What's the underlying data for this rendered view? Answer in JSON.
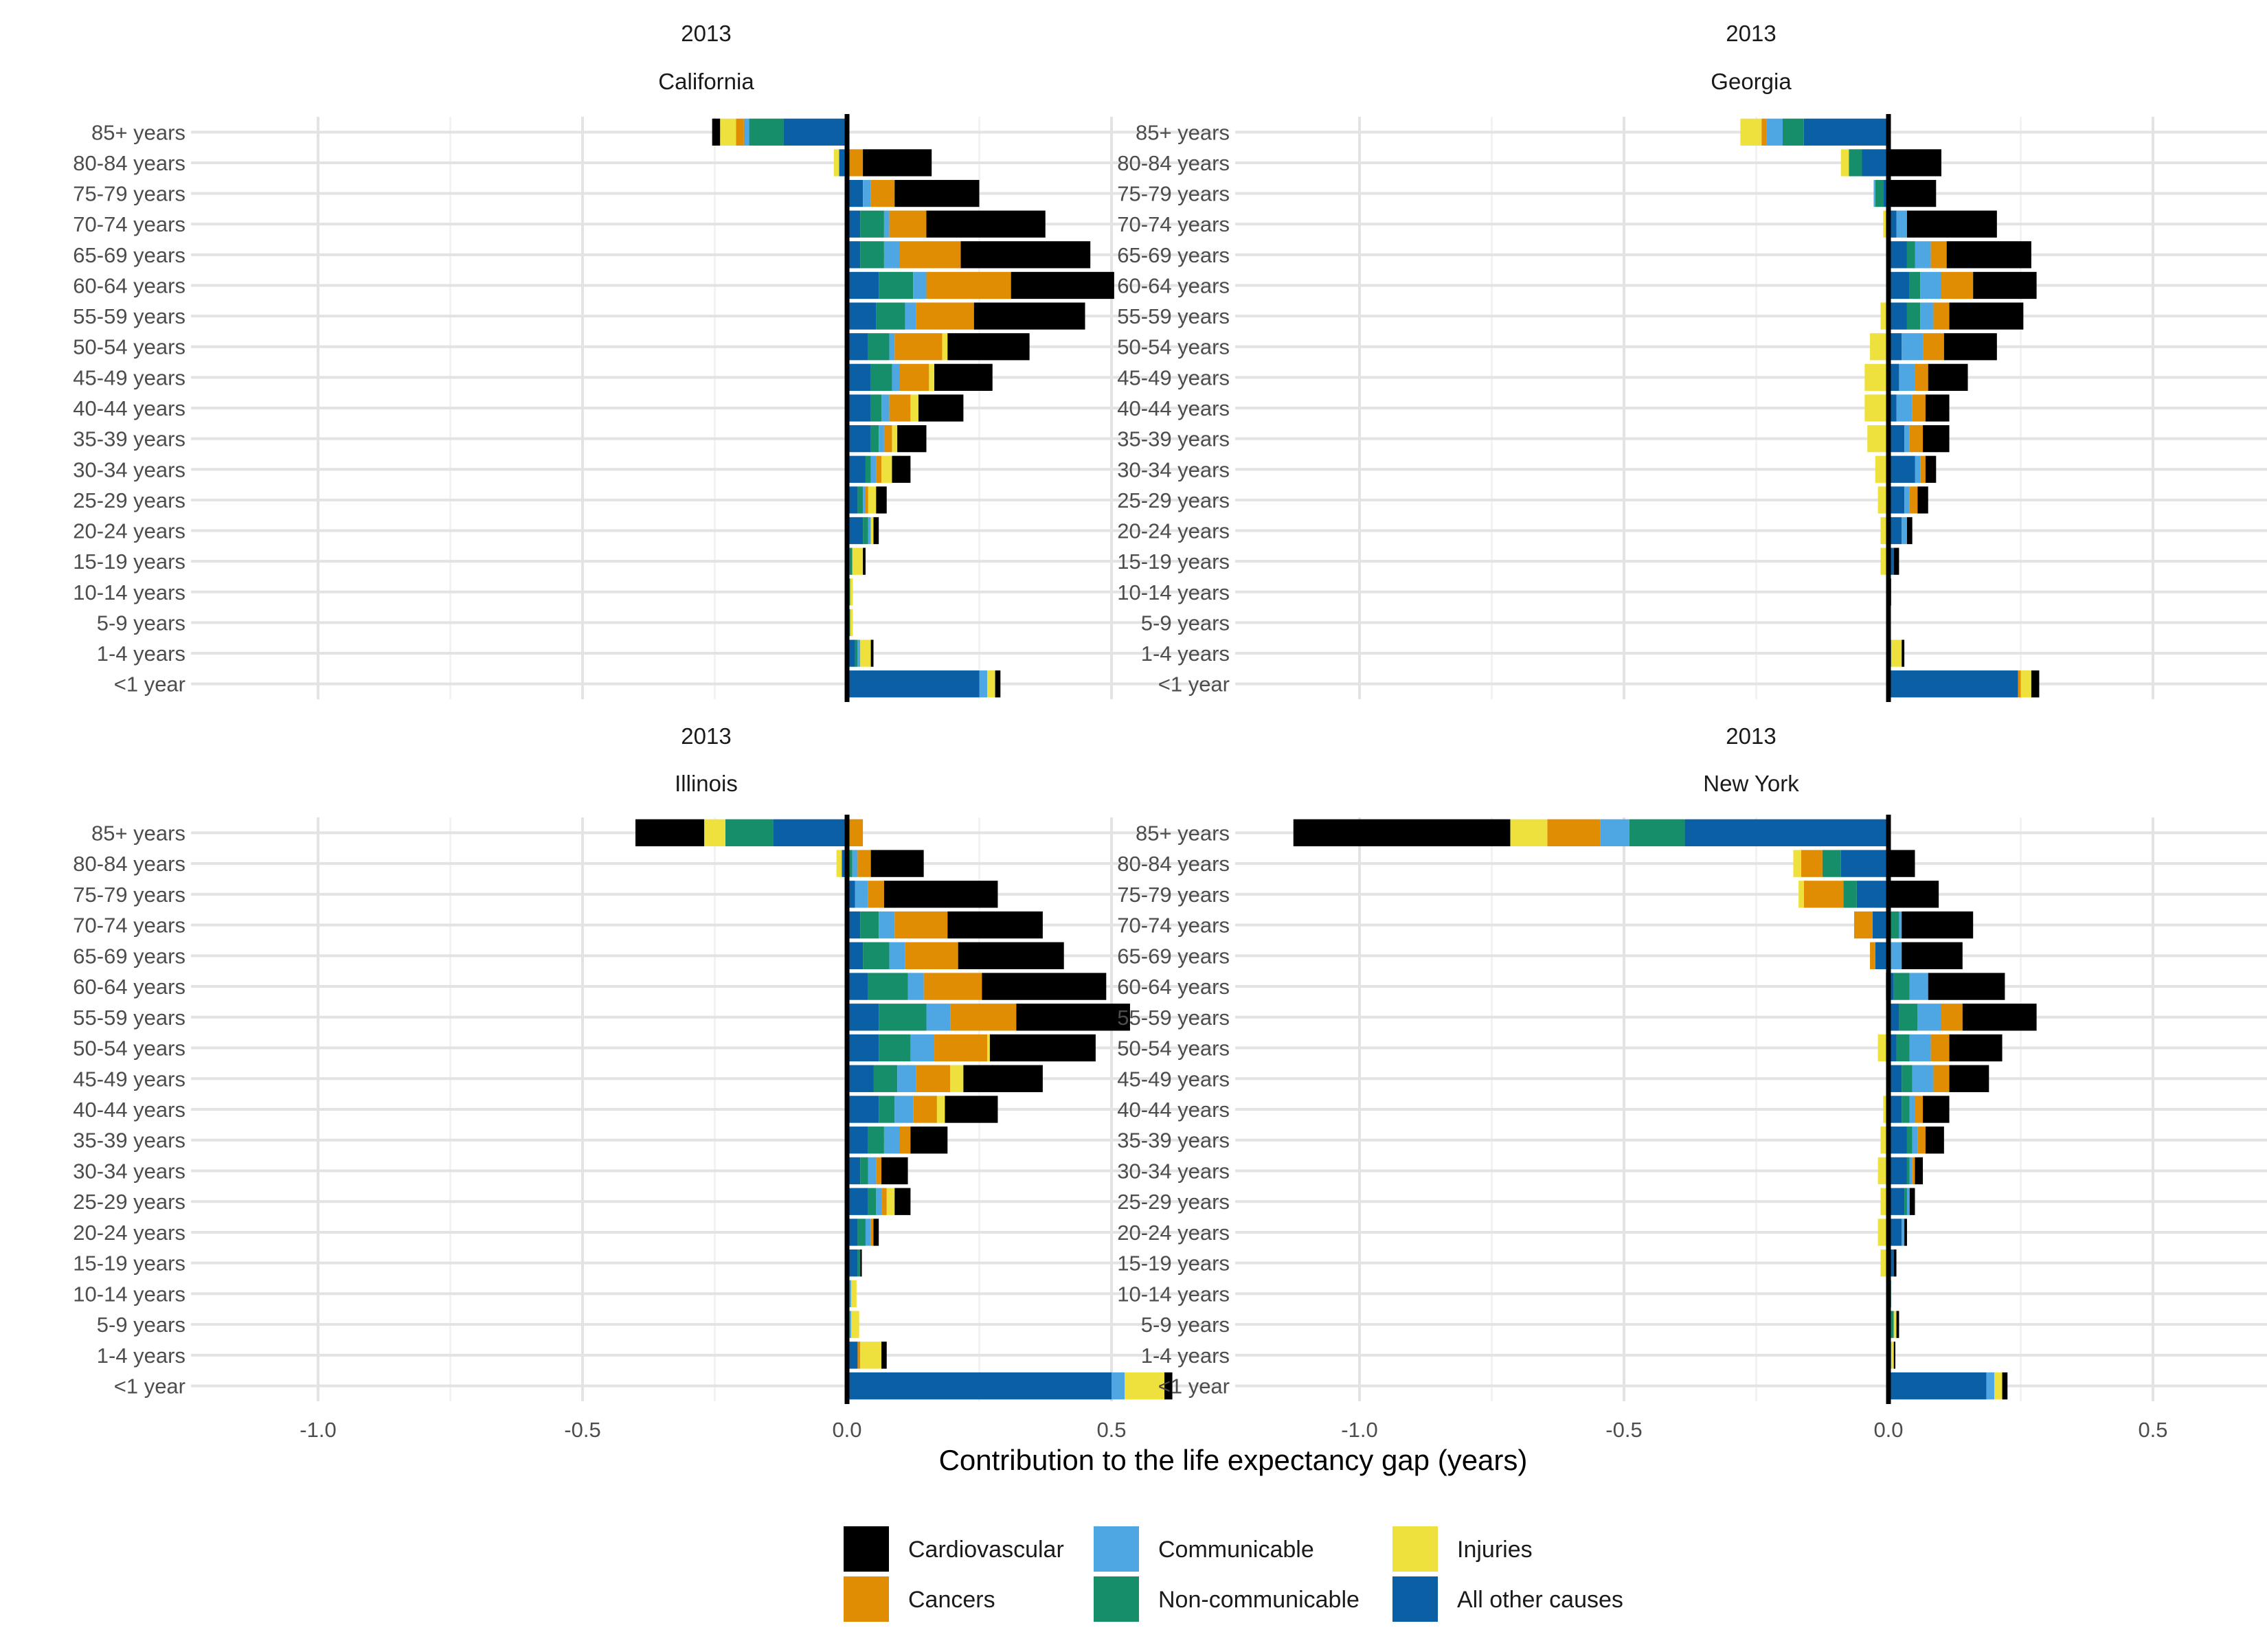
{
  "chart_data": {
    "type": "bar",
    "orientation": "horizontal",
    "stacked": true,
    "xlabel": "Contribution to the life expectancy gap (years)",
    "ylabel": "",
    "xlim": [
      -1.2,
      0.7
    ],
    "x_ticks": [
      -1.0,
      -0.5,
      0.0,
      0.5
    ],
    "x_tick_labels": [
      "-1.0",
      "-0.5",
      "0.0",
      "0.5"
    ],
    "grid": true,
    "legend_position": "bottom",
    "age_groups": [
      "85+ years",
      "80-84 years",
      "75-79 years",
      "70-74 years",
      "65-69 years",
      "60-64 years",
      "55-59 years",
      "50-54 years",
      "45-49 years",
      "40-44 years",
      "35-39 years",
      "30-34 years",
      "25-29 years",
      "20-24 years",
      "15-19 years",
      "10-14 years",
      "5-9 years",
      "1-4 years",
      "<1 year"
    ],
    "causes": [
      {
        "key": "all_other",
        "name": "All other causes",
        "color": "#0B5FA5"
      },
      {
        "key": "noncomm",
        "name": "Non-communicable",
        "color": "#168E69"
      },
      {
        "key": "comm",
        "name": "Communicable",
        "color": "#4EA7E2"
      },
      {
        "key": "cancers",
        "name": "Cancers",
        "color": "#E08D04"
      },
      {
        "key": "injuries",
        "name": "Injuries",
        "color": "#EEE13E"
      },
      {
        "key": "cardio",
        "name": "Cardiovascular",
        "color": "#000000"
      }
    ],
    "legend_order": [
      "cardio",
      "cancers",
      "comm",
      "noncomm",
      "injuries",
      "all_other"
    ],
    "panels": [
      {
        "year": "2013",
        "state": "California",
        "rows": [
          {
            "all_other": -0.12,
            "injuries": -0.03,
            "noncomm": -0.065,
            "comm": -0.01,
            "cancers": -0.015,
            "cardio": -0.015
          },
          {
            "all_other": -0.015,
            "injuries": -0.01,
            "cancers": 0.03,
            "cardio": 0.13
          },
          {
            "all_other": 0.03,
            "comm": 0.015,
            "cancers": 0.045,
            "cardio": 0.16
          },
          {
            "all_other": 0.025,
            "noncomm": 0.045,
            "comm": 0.01,
            "cancers": 0.07,
            "cardio": 0.225
          },
          {
            "all_other": 0.025,
            "noncomm": 0.045,
            "comm": 0.03,
            "cancers": 0.115,
            "cardio": 0.245
          },
          {
            "all_other": 0.06,
            "noncomm": 0.065,
            "comm": 0.025,
            "cancers": 0.16,
            "cardio": 0.195
          },
          {
            "all_other": 0.055,
            "noncomm": 0.055,
            "comm": 0.02,
            "cancers": 0.11,
            "cardio": 0.21
          },
          {
            "all_other": 0.04,
            "injuries": 0.01,
            "noncomm": 0.04,
            "comm": 0.01,
            "cancers": 0.09,
            "cardio": 0.155
          },
          {
            "all_other": 0.045,
            "injuries": 0.01,
            "noncomm": 0.04,
            "comm": 0.015,
            "cancers": 0.055,
            "cardio": 0.11
          },
          {
            "all_other": 0.045,
            "injuries": 0.015,
            "noncomm": 0.02,
            "comm": 0.015,
            "cancers": 0.04,
            "cardio": 0.085
          },
          {
            "all_other": 0.045,
            "injuries": 0.01,
            "noncomm": 0.015,
            "comm": 0.01,
            "cancers": 0.015,
            "cardio": 0.055
          },
          {
            "all_other": 0.035,
            "injuries": 0.02,
            "noncomm": 0.01,
            "comm": 0.01,
            "cancers": 0.01,
            "cardio": 0.035
          },
          {
            "all_other": 0.02,
            "injuries": 0.015,
            "noncomm": 0.01,
            "comm": 0.005,
            "cancers": 0.005,
            "cardio": 0.02
          },
          {
            "all_other": 0.03,
            "injuries": 0.005,
            "noncomm": 0.01,
            "comm": 0.005,
            "cardio": 0.01
          },
          {
            "all_other": 0.005,
            "injuries": 0.02,
            "noncomm": 0.005,
            "cardio": 0.005
          },
          {
            "all_other": 0.003,
            "injuries": 0.005,
            "noncomm": 0.003
          },
          {
            "all_other": 0.003,
            "injuries": 0.005,
            "noncomm": 0.003
          },
          {
            "all_other": 0.015,
            "injuries": 0.02,
            "noncomm": 0.005,
            "comm": 0.005,
            "cardio": 0.005
          },
          {
            "all_other": 0.25,
            "injuries": 0.015,
            "comm": 0.015,
            "cardio": 0.01
          }
        ]
      },
      {
        "year": "2013",
        "state": "Georgia",
        "rows": [
          {
            "all_other": -0.16,
            "injuries": -0.04,
            "noncomm": -0.04,
            "comm": -0.03,
            "cancers": -0.01
          },
          {
            "all_other": -0.05,
            "injuries": -0.015,
            "noncomm": -0.025,
            "cardio": 0.1
          },
          {
            "all_other": -0.01,
            "noncomm": -0.015,
            "comm": -0.003,
            "cardio": 0.09
          },
          {
            "injuries": -0.005,
            "cancers": -0.005,
            "all_other": 0.015,
            "comm": 0.02,
            "cardio": 0.17
          },
          {
            "all_other": 0.035,
            "noncomm": 0.015,
            "comm": 0.03,
            "cancers": 0.03,
            "cardio": 0.16
          },
          {
            "all_other": 0.04,
            "noncomm": 0.02,
            "comm": 0.04,
            "cancers": 0.06,
            "cardio": 0.12
          },
          {
            "injuries": -0.015,
            "all_other": 0.035,
            "noncomm": 0.025,
            "comm": 0.025,
            "cancers": 0.03,
            "cardio": 0.14
          },
          {
            "injuries": -0.035,
            "all_other": 0.025,
            "comm": 0.04,
            "cancers": 0.04,
            "cardio": 0.1
          },
          {
            "injuries": -0.045,
            "all_other": 0.02,
            "comm": 0.03,
            "cancers": 0.025,
            "cardio": 0.075
          },
          {
            "injuries": -0.045,
            "all_other": 0.015,
            "comm": 0.03,
            "cancers": 0.025,
            "cardio": 0.045
          },
          {
            "injuries": -0.04,
            "all_other": 0.03,
            "comm": 0.01,
            "cancers": 0.025,
            "cardio": 0.05
          },
          {
            "injuries": -0.025,
            "all_other": 0.05,
            "comm": 0.01,
            "cancers": 0.01,
            "cardio": 0.02
          },
          {
            "injuries": -0.02,
            "all_other": 0.03,
            "comm": 0.01,
            "cancers": 0.015,
            "cardio": 0.02
          },
          {
            "injuries": -0.015,
            "all_other": 0.025,
            "comm": 0.01,
            "cardio": 0.01
          },
          {
            "injuries": -0.015,
            "all_other": 0.01,
            "cardio": 0.01
          },
          {
            "cardio": 0.005
          },
          {},
          {
            "all_other": 0.005,
            "injuries": 0.02,
            "cardio": 0.005
          },
          {
            "all_other": 0.245,
            "injuries": 0.02,
            "cancers": 0.005,
            "cardio": 0.015
          }
        ]
      },
      {
        "year": "2013",
        "state": "Illinois",
        "rows": [
          {
            "all_other": -0.14,
            "injuries": -0.04,
            "noncomm": -0.09,
            "cardio": -0.13,
            "cancers": 0.03
          },
          {
            "injuries": -0.01,
            "all_other": -0.01,
            "noncomm": 0.01,
            "comm": 0.01,
            "cancers": 0.025,
            "cardio": 0.1
          },
          {
            "all_other": 0.015,
            "comm": 0.025,
            "cancers": 0.03,
            "cardio": 0.215
          },
          {
            "all_other": 0.025,
            "noncomm": 0.035,
            "comm": 0.03,
            "cancers": 0.1,
            "cardio": 0.18
          },
          {
            "all_other": 0.03,
            "noncomm": 0.05,
            "comm": 0.03,
            "cancers": 0.1,
            "cardio": 0.2
          },
          {
            "all_other": 0.04,
            "noncomm": 0.075,
            "comm": 0.03,
            "cancers": 0.11,
            "cardio": 0.235
          },
          {
            "all_other": 0.06,
            "noncomm": 0.09,
            "comm": 0.045,
            "cancers": 0.125,
            "cardio": 0.215
          },
          {
            "all_other": 0.06,
            "injuries": 0.005,
            "noncomm": 0.06,
            "comm": 0.045,
            "cancers": 0.1,
            "cardio": 0.2
          },
          {
            "all_other": 0.05,
            "injuries": 0.025,
            "noncomm": 0.045,
            "comm": 0.035,
            "cancers": 0.065,
            "cardio": 0.15
          },
          {
            "all_other": 0.06,
            "injuries": 0.015,
            "noncomm": 0.03,
            "comm": 0.035,
            "cancers": 0.045,
            "cardio": 0.1
          },
          {
            "all_other": 0.04,
            "noncomm": 0.03,
            "comm": 0.03,
            "cancers": 0.02,
            "cardio": 0.07
          },
          {
            "all_other": 0.025,
            "noncomm": 0.015,
            "comm": 0.015,
            "cancers": 0.01,
            "cardio": 0.05
          },
          {
            "all_other": 0.04,
            "injuries": 0.015,
            "noncomm": 0.015,
            "comm": 0.01,
            "cancers": 0.01,
            "cardio": 0.03
          },
          {
            "all_other": 0.02,
            "noncomm": 0.015,
            "comm": 0.01,
            "cancers": 0.005,
            "cardio": 0.01
          },
          {
            "all_other": 0.02,
            "noncomm": 0.005,
            "cardio": 0.003
          },
          {
            "noncomm": 0.005,
            "injuries": 0.01,
            "comm": 0.003
          },
          {
            "noncomm": 0.005,
            "injuries": 0.015,
            "comm": 0.003
          },
          {
            "all_other": 0.02,
            "injuries": 0.04,
            "cancers": 0.005,
            "cardio": 0.01
          },
          {
            "all_other": 0.5,
            "injuries": 0.075,
            "comm": 0.025,
            "cardio": 0.015
          }
        ]
      },
      {
        "year": "2013",
        "state": "New York",
        "rows": [
          {
            "all_other": -0.385,
            "injuries": -0.07,
            "noncomm": -0.105,
            "comm": -0.055,
            "cancers": -0.1,
            "cardio": -0.41
          },
          {
            "all_other": -0.09,
            "injuries": -0.015,
            "noncomm": -0.035,
            "cancers": -0.04,
            "cardio": 0.05
          },
          {
            "all_other": -0.06,
            "injuries": -0.01,
            "noncomm": -0.025,
            "cancers": -0.075,
            "cardio": 0.095
          },
          {
            "all_other": -0.03,
            "cancers": -0.035,
            "noncomm": 0.02,
            "comm": 0.005,
            "cardio": 0.135
          },
          {
            "all_other": -0.025,
            "cancers": -0.01,
            "comm": 0.025,
            "cardio": 0.115
          },
          {
            "cancers": -0.005,
            "noncomm": 0.03,
            "comm": 0.035,
            "cancers_pos": 0,
            "cardio": 0.145,
            "all_other": 0.01
          },
          {
            "all_other": 0.02,
            "noncomm": 0.035,
            "comm": 0.045,
            "cancers": 0.04,
            "cardio": 0.14
          },
          {
            "injuries": -0.02,
            "all_other": 0.015,
            "noncomm": 0.025,
            "comm": 0.04,
            "cancers": 0.035,
            "cardio": 0.1
          },
          {
            "all_other": 0.025,
            "noncomm": 0.02,
            "comm": 0.04,
            "cancers": 0.03,
            "cardio": 0.075
          },
          {
            "injuries": -0.01,
            "all_other": 0.025,
            "noncomm": 0.015,
            "comm": 0.01,
            "cancers": 0.015,
            "cardio": 0.05
          },
          {
            "injuries": -0.015,
            "all_other": 0.035,
            "noncomm": 0.01,
            "comm": 0.01,
            "cancers": 0.015,
            "cardio": 0.035
          },
          {
            "injuries": -0.02,
            "all_other": 0.035,
            "noncomm": 0.005,
            "comm": 0.005,
            "cancers": 0.005,
            "cardio": 0.015
          },
          {
            "injuries": -0.015,
            "all_other": 0.03,
            "noncomm": 0.005,
            "comm": 0.005,
            "cardio": 0.01
          },
          {
            "injuries": -0.02,
            "all_other": 0.025,
            "comm": 0.005,
            "cardio": 0.005
          },
          {
            "injuries": -0.015,
            "all_other": 0.01,
            "cardio": 0.005
          },
          {
            "noncomm": 0.005
          },
          {
            "noncomm": 0.01,
            "injuries": 0.005,
            "cardio": 0.005
          },
          {
            "all_other": 0.005,
            "injuries": 0.005,
            "cardio": 0.003
          },
          {
            "all_other": 0.185,
            "injuries": 0.015,
            "comm": 0.015,
            "cardio": 0.01
          }
        ]
      }
    ]
  }
}
